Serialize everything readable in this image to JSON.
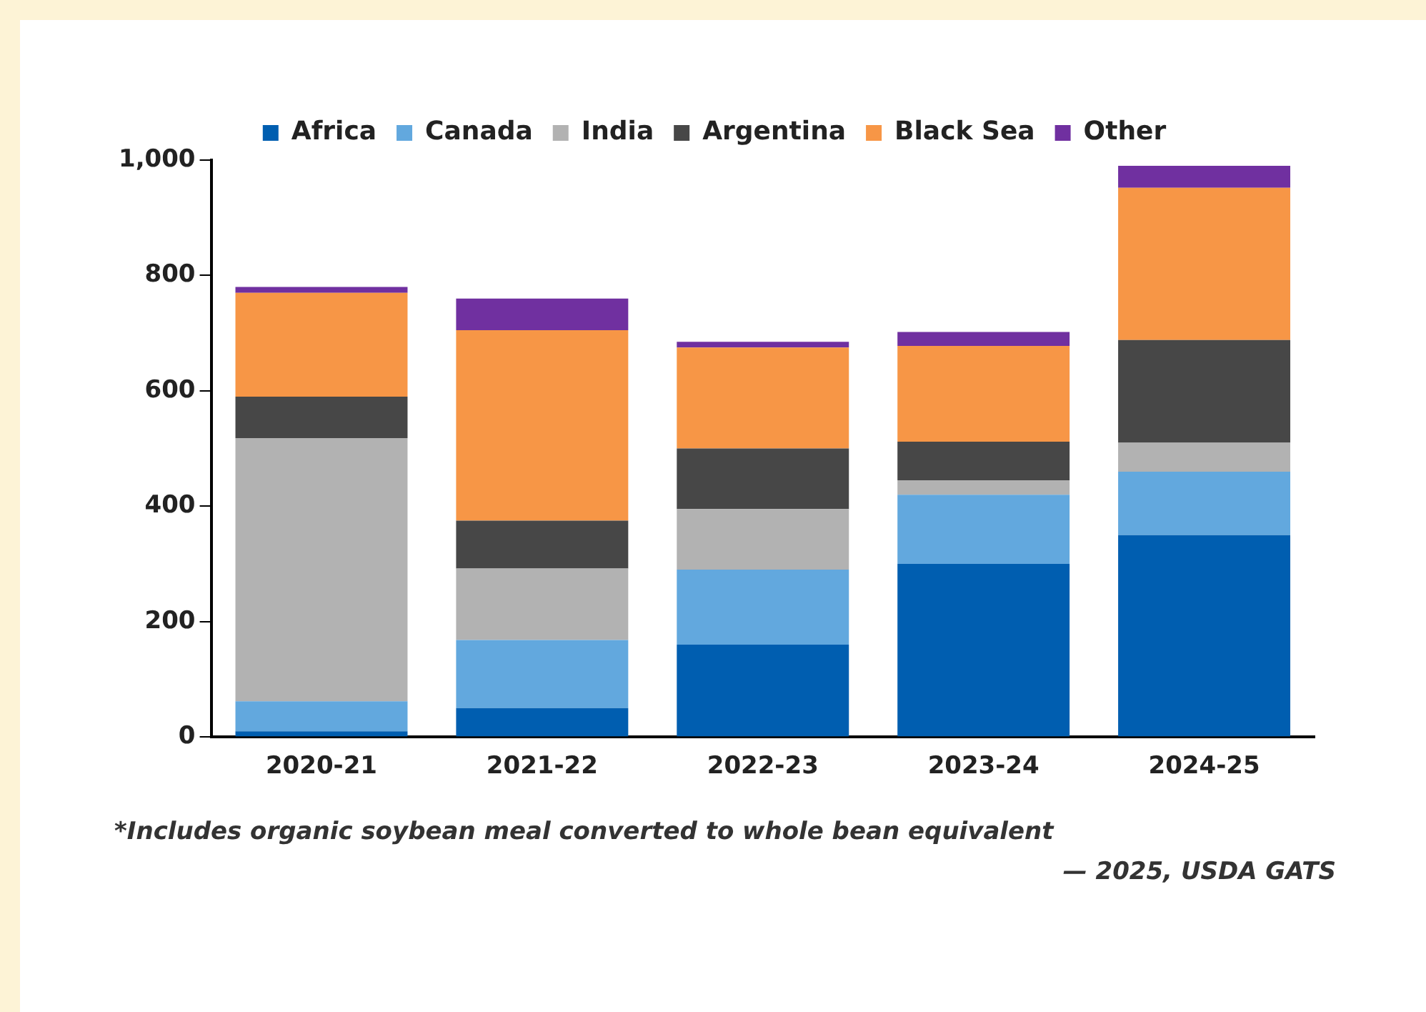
{
  "chart_data": {
    "type": "bar",
    "stacked": true,
    "categories": [
      "2020-21",
      "2021-22",
      "2022-23",
      "2023-24",
      "2024-25"
    ],
    "series": [
      {
        "name": "Africa",
        "color": "#005eb0",
        "values": [
          10,
          50,
          160,
          300,
          350
        ]
      },
      {
        "name": "Canada",
        "color": "#62a8de",
        "values": [
          52,
          118,
          130,
          120,
          110
        ]
      },
      {
        "name": "India",
        "color": "#b2b2b2",
        "values": [
          456,
          124,
          105,
          25,
          50
        ]
      },
      {
        "name": "Argentina",
        "color": "#474747",
        "values": [
          72,
          83,
          105,
          67,
          178
        ]
      },
      {
        "name": "Black Sea",
        "color": "#f79646",
        "values": [
          180,
          330,
          175,
          166,
          264
        ]
      },
      {
        "name": "Other",
        "color": "#7030a0",
        "values": [
          10,
          55,
          10,
          24,
          38
        ]
      }
    ],
    "ylim": [
      0,
      1000
    ],
    "yticks": [
      0,
      {
        "value": 200,
        "label": "200"
      },
      {
        "value": 400,
        "label": "400"
      },
      {
        "value": 600,
        "label": "600"
      },
      {
        "value": 800,
        "label": "800"
      },
      {
        "value": 1000,
        "label": "1,000"
      }
    ],
    "grid": false,
    "legend": "top",
    "annotations": [
      "*Includes organic soybean meal converted to whole bean equivalent",
      "— 2025, USDA GATS"
    ]
  }
}
